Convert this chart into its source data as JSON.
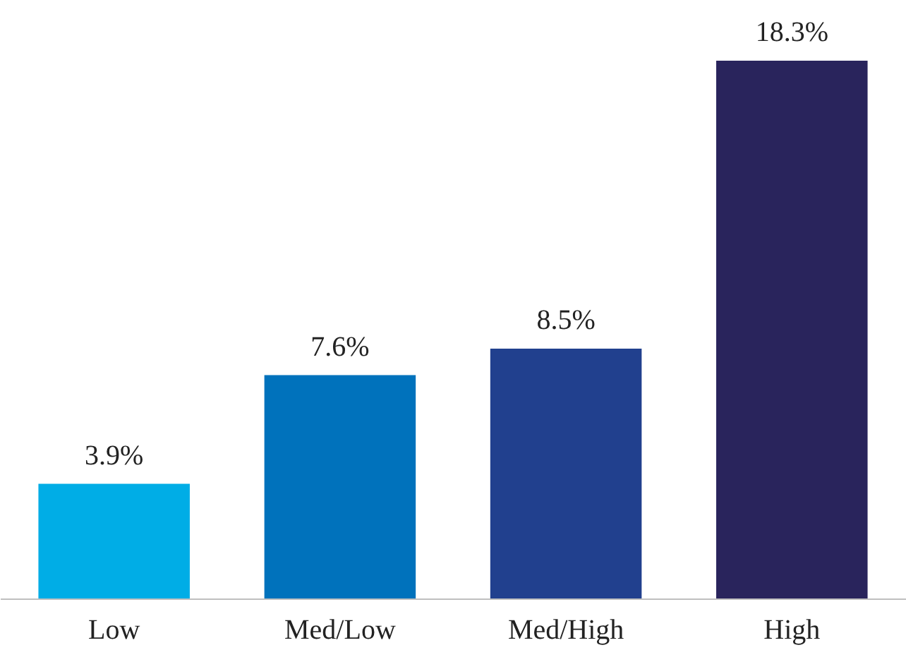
{
  "chart_data": {
    "type": "bar",
    "categories": [
      "Low",
      "Med/Low",
      "Med/High",
      "High"
    ],
    "values": [
      3.9,
      7.6,
      8.5,
      18.3
    ],
    "colors": [
      "#00ade6",
      "#0072bc",
      "#21408e",
      "#29245c"
    ],
    "value_labels": [
      "3.9%",
      "7.6%",
      "8.5%",
      "18.3%"
    ],
    "grid": false
  }
}
